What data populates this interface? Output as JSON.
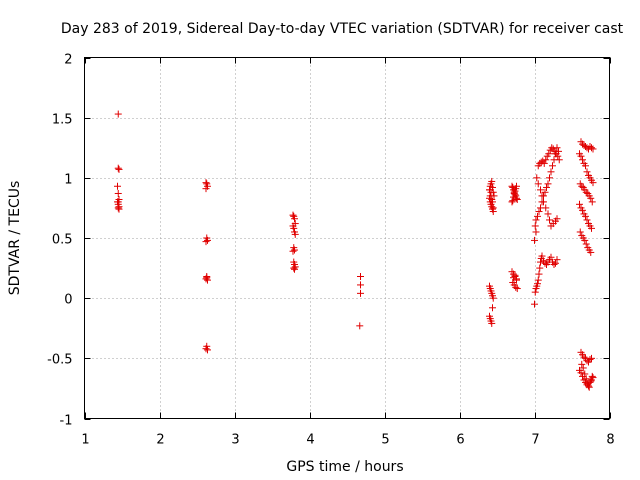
{
  "chart_data": {
    "type": "scatter",
    "title": "Day 283 of 2019, Sidereal Day-to-day VTEC variation (SDTVAR) for receiver cast",
    "xlabel": "GPS time / hours",
    "ylabel": "SDTVAR / TECUs",
    "xlim": [
      1,
      8
    ],
    "ylim": [
      -1,
      2
    ],
    "xticks": [
      1,
      2,
      3,
      4,
      5,
      6,
      7,
      8
    ],
    "yticks": [
      -1,
      -0.5,
      0,
      0.5,
      1,
      1.5,
      2
    ],
    "xtick_labels": [
      "1",
      "2",
      "3",
      "4",
      "5",
      "6",
      "7",
      "8"
    ],
    "ytick_labels": [
      "-1",
      "-0.5",
      "0",
      "0.5",
      "1",
      "1.5",
      "2"
    ],
    "grid": true,
    "marker": "+",
    "color": "#e00000",
    "series": [
      {
        "name": "SDTVAR",
        "x": [
          1.45,
          1.45,
          1.46,
          1.44,
          1.45,
          1.46,
          1.44,
          1.45,
          1.46,
          1.45,
          1.46,
          1.45,
          2.62,
          2.63,
          2.64,
          2.62,
          2.63,
          2.64,
          2.62,
          2.63,
          2.62,
          2.63,
          2.64,
          2.63,
          2.62,
          2.64,
          3.78,
          3.79,
          3.8,
          3.81,
          3.78,
          3.79,
          3.8,
          3.81,
          3.79,
          3.8,
          3.78,
          3.79,
          3.8,
          3.81,
          3.79,
          3.8,
          4.68,
          4.68,
          4.68,
          4.67,
          6.4,
          6.41,
          6.42,
          6.43,
          6.44,
          6.45,
          6.46,
          6.4,
          6.41,
          6.42,
          6.43,
          6.44,
          6.45,
          6.4,
          6.41,
          6.42,
          6.43,
          6.44,
          6.45,
          6.4,
          6.41,
          6.42,
          6.43,
          6.44,
          6.4,
          6.41,
          6.42,
          6.43,
          6.44,
          6.45,
          6.7,
          6.71,
          6.72,
          6.73,
          6.74,
          6.75,
          6.76,
          6.77,
          6.7,
          6.71,
          6.72,
          6.73,
          6.74,
          6.75,
          6.76,
          6.7,
          6.72,
          6.74,
          6.76,
          6.71,
          6.73,
          6.75,
          6.77,
          6.72,
          6.74,
          6.76,
          7.0,
          7.01,
          7.02,
          7.03,
          7.04,
          7.05,
          7.06,
          7.07,
          7.08,
          7.09,
          7.1,
          7.12,
          7.14,
          7.16,
          7.18,
          7.2,
          7.22,
          7.24,
          7.26,
          7.28,
          7.3,
          7.02,
          7.04,
          7.06,
          7.08,
          7.1,
          7.12,
          7.14,
          7.16,
          7.18,
          7.2,
          7.22,
          7.24,
          7.26,
          7.28,
          7.3,
          7.32,
          7.05,
          7.07,
          7.09,
          7.11,
          7.13,
          7.15,
          7.17,
          7.19,
          7.21,
          7.23,
          7.25,
          7.27,
          7.29,
          7.31,
          7.33,
          7.03,
          7.05,
          7.08,
          7.1,
          7.12,
          7.15,
          7.18,
          7.2,
          7.22,
          7.25,
          7.28,
          7.3,
          7.0,
          7.02,
          7.01,
          7.62,
          7.64,
          7.66,
          7.68,
          7.7,
          7.72,
          7.74,
          7.76,
          7.78,
          7.6,
          7.62,
          7.64,
          7.66,
          7.68,
          7.7,
          7.72,
          7.74,
          7.76,
          7.78,
          7.61,
          7.63,
          7.65,
          7.67,
          7.69,
          7.71,
          7.73,
          7.75,
          7.77,
          7.6,
          7.62,
          7.64,
          7.66,
          7.68,
          7.7,
          7.72,
          7.74,
          7.76,
          7.61,
          7.63,
          7.65,
          7.67,
          7.69,
          7.71,
          7.73,
          7.75,
          7.62,
          7.64,
          7.66,
          7.68,
          7.7,
          7.72,
          7.74,
          7.76,
          7.6,
          7.62,
          7.64,
          7.66,
          7.68,
          7.7,
          7.72,
          7.74,
          7.76,
          7.78,
          7.63,
          7.65,
          7.67,
          7.69,
          7.71,
          7.73,
          7.75,
          7.77
        ],
        "y": [
          1.53,
          1.08,
          1.07,
          0.93,
          0.87,
          0.82,
          0.8,
          0.78,
          0.76,
          0.75,
          0.74,
          0.8,
          0.96,
          0.95,
          0.93,
          0.91,
          0.5,
          0.48,
          0.47,
          0.18,
          0.16,
          0.17,
          0.15,
          -0.4,
          -0.42,
          -0.43,
          0.69,
          0.68,
          0.66,
          0.62,
          0.6,
          0.58,
          0.55,
          0.53,
          0.42,
          0.4,
          0.39,
          0.3,
          0.28,
          0.26,
          0.25,
          0.24,
          0.18,
          0.11,
          0.04,
          -0.23,
          0.9,
          0.93,
          0.95,
          0.97,
          0.92,
          0.88,
          0.85,
          0.83,
          0.8,
          0.78,
          0.76,
          0.74,
          0.72,
          0.1,
          0.08,
          0.06,
          0.04,
          0.02,
          0.0,
          -0.15,
          -0.17,
          -0.19,
          -0.21,
          -0.08,
          0.9,
          0.85,
          0.88,
          0.82,
          0.8,
          0.75,
          0.93,
          0.92,
          0.9,
          0.88,
          0.86,
          0.85,
          0.83,
          0.82,
          0.8,
          0.81,
          0.84,
          0.87,
          0.89,
          0.91,
          0.93,
          0.22,
          0.2,
          0.18,
          0.15,
          0.13,
          0.11,
          0.09,
          0.08,
          0.17,
          0.19,
          0.16,
          -0.05,
          0.05,
          0.08,
          0.1,
          0.12,
          0.15,
          0.2,
          0.25,
          0.3,
          0.33,
          0.35,
          0.31,
          0.29,
          0.28,
          0.3,
          0.32,
          0.34,
          0.3,
          0.28,
          0.29,
          0.32,
          0.65,
          0.68,
          0.72,
          0.75,
          0.8,
          0.85,
          0.88,
          0.92,
          0.95,
          1.0,
          1.05,
          1.1,
          1.15,
          1.2,
          1.25,
          1.22,
          1.1,
          1.12,
          1.13,
          1.14,
          1.12,
          1.15,
          1.18,
          1.2,
          1.23,
          1.25,
          1.24,
          1.22,
          1.2,
          1.18,
          1.15,
          1.0,
          0.95,
          0.9,
          0.85,
          0.8,
          0.75,
          0.7,
          0.65,
          0.6,
          0.62,
          0.64,
          0.66,
          0.48,
          0.55,
          0.6,
          1.3,
          1.28,
          1.27,
          1.26,
          1.25,
          1.24,
          1.26,
          1.25,
          1.24,
          1.2,
          1.18,
          1.15,
          1.12,
          1.1,
          1.05,
          1.02,
          1.0,
          0.98,
          0.96,
          0.95,
          0.93,
          0.92,
          0.9,
          0.88,
          0.87,
          0.85,
          0.83,
          0.8,
          0.78,
          0.75,
          0.73,
          0.7,
          0.68,
          0.65,
          0.62,
          0.6,
          0.58,
          0.55,
          0.52,
          0.5,
          0.48,
          0.45,
          0.42,
          0.4,
          0.38,
          -0.45,
          -0.47,
          -0.49,
          -0.5,
          -0.52,
          -0.53,
          -0.51,
          -0.5,
          -0.6,
          -0.62,
          -0.65,
          -0.68,
          -0.7,
          -0.72,
          -0.73,
          -0.7,
          -0.68,
          -0.66,
          -0.55,
          -0.58,
          -0.63,
          -0.67,
          -0.71,
          -0.74,
          -0.69,
          -0.65
        ]
      }
    ]
  }
}
